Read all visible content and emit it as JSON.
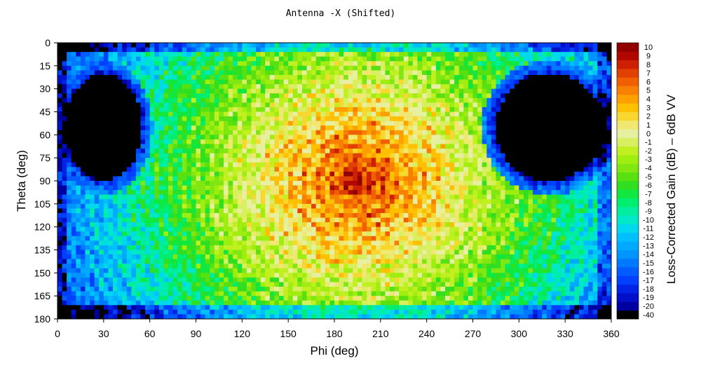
{
  "chart_data": {
    "type": "heatmap",
    "title": "Antenna -X (Shifted)",
    "xlabel": "Phi (deg)",
    "ylabel": "Theta (deg)",
    "colorbar_label": "Loss-Corrected Gain (dB) – 6dB VV",
    "xlim": [
      0,
      360
    ],
    "ylim": [
      180,
      0
    ],
    "x_ticks": [
      0,
      30,
      60,
      90,
      120,
      150,
      180,
      210,
      240,
      270,
      300,
      330,
      360
    ],
    "y_ticks": [
      0,
      15,
      30,
      45,
      60,
      75,
      90,
      105,
      120,
      135,
      150,
      165,
      180
    ],
    "colorbar_levels": [
      -40,
      -20,
      -19,
      -18,
      -17,
      -16,
      -15,
      -14,
      -13,
      -12,
      -11,
      -10,
      -9,
      -8,
      -7,
      -6,
      -5,
      -4,
      -3,
      -2,
      -1,
      0,
      1,
      2,
      3,
      4,
      5,
      6,
      7,
      8,
      9,
      10
    ],
    "colorbar_colors": [
      "#000000",
      "#0000a0",
      "#0010c8",
      "#0024e6",
      "#0040ff",
      "#005cff",
      "#0078ff",
      "#0094ff",
      "#00aaff",
      "#00c0ff",
      "#00d8ee",
      "#00e8c8",
      "#00eea0",
      "#00ee70",
      "#10e840",
      "#30e020",
      "#58e010",
      "#80e810",
      "#a0ee10",
      "#c0f020",
      "#d8f060",
      "#e6f0a0",
      "#f0e870",
      "#f8d830",
      "#ffc000",
      "#ffa000",
      "#f88000",
      "#f06000",
      "#e04000",
      "#cc2000",
      "#b00800",
      "#900000"
    ],
    "peak": {
      "phi": 195,
      "theta": 90,
      "gain_db": 10
    },
    "features": [
      {
        "desc": "main beam with concentric sidelobe rings",
        "phi_center": 195,
        "theta_center": 90
      },
      {
        "desc": "deep null region",
        "phi_range": [
          5,
          55
        ],
        "theta_range": [
          20,
          90
        ]
      },
      {
        "desc": "deep null region",
        "phi_range": [
          285,
          355
        ],
        "theta_range": [
          20,
          90
        ]
      }
    ]
  }
}
